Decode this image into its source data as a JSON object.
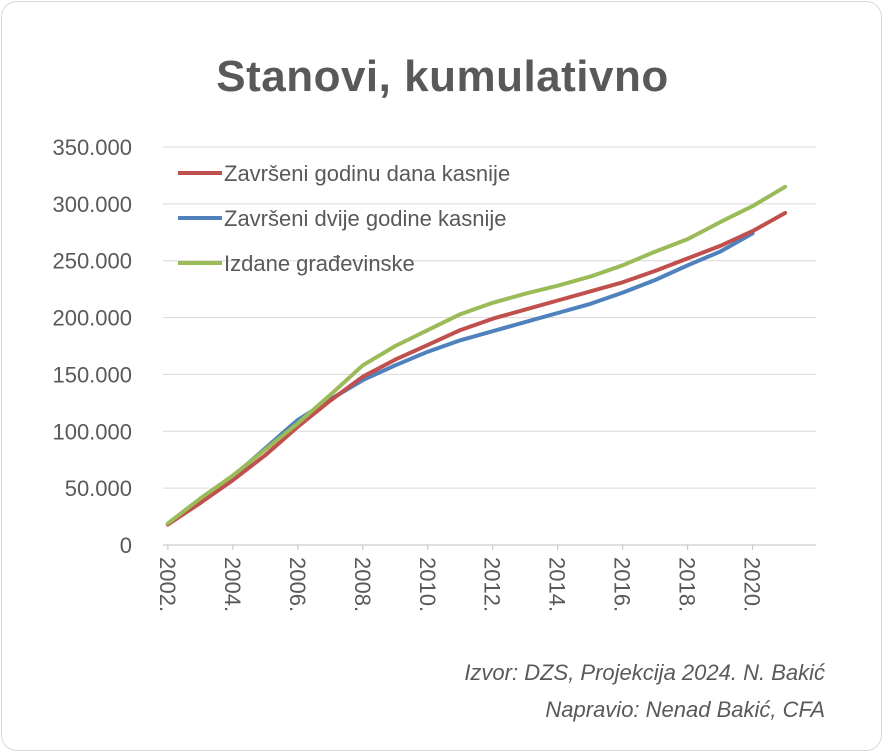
{
  "chart_data": {
    "type": "line",
    "title": "Stanovi, kumulativno",
    "y_ticks": [
      "0",
      "50.000",
      "100.000",
      "150.000",
      "200.000",
      "250.000",
      "300.000",
      "350.000"
    ],
    "ylim": [
      0,
      350000
    ],
    "x_ticks": [
      "2002.",
      "2004.",
      "2006.",
      "2008.",
      "2010.",
      "2012.",
      "2014.",
      "2016.",
      "2018.",
      "2020."
    ],
    "xlim": [
      2001.85,
      2021.95
    ],
    "grid": true,
    "legend_position": "top-left",
    "series": [
      {
        "name": "Završeni godinu dana kasnije",
        "color": "#c0504d",
        "x": [
          2002,
          2003,
          2004,
          2005,
          2006,
          2007,
          2008,
          2009,
          2010,
          2011,
          2012,
          2013,
          2014,
          2015,
          2016,
          2017,
          2018,
          2019,
          2020,
          2021
        ],
        "y": [
          18000,
          37000,
          57000,
          79000,
          104000,
          127000,
          148000,
          163000,
          176000,
          189000,
          199000,
          207000,
          215000,
          223000,
          231000,
          241000,
          252000,
          263000,
          276000,
          292000
        ]
      },
      {
        "name": "Završeni dvije godine kasnije",
        "color": "#4f81bd",
        "x": [
          2002,
          2003,
          2004,
          2005,
          2006,
          2007,
          2008,
          2009,
          2010,
          2011,
          2012,
          2013,
          2014,
          2015,
          2016,
          2017,
          2018,
          2019,
          2020
        ],
        "y": [
          18000,
          39000,
          60000,
          85000,
          110000,
          128000,
          145000,
          158000,
          170000,
          180000,
          188000,
          196000,
          204000,
          212000,
          222000,
          233000,
          246000,
          258000,
          274000
        ]
      },
      {
        "name": "Izdane građevinske",
        "color": "#9bbb59",
        "x": [
          2002,
          2003,
          2004,
          2005,
          2006,
          2007,
          2008,
          2009,
          2010,
          2011,
          2012,
          2013,
          2014,
          2015,
          2016,
          2017,
          2018,
          2019,
          2020,
          2021
        ],
        "y": [
          19000,
          41000,
          61000,
          84000,
          107000,
          132000,
          158000,
          175000,
          189000,
          203000,
          213000,
          221000,
          228000,
          236000,
          246000,
          258000,
          269000,
          284000,
          298000,
          315000
        ]
      }
    ]
  },
  "source_line1": "Izvor: DZS, Projekcija 2024. N. Bakić",
  "source_line2": "Napravio: Nenad Bakić, CFA"
}
